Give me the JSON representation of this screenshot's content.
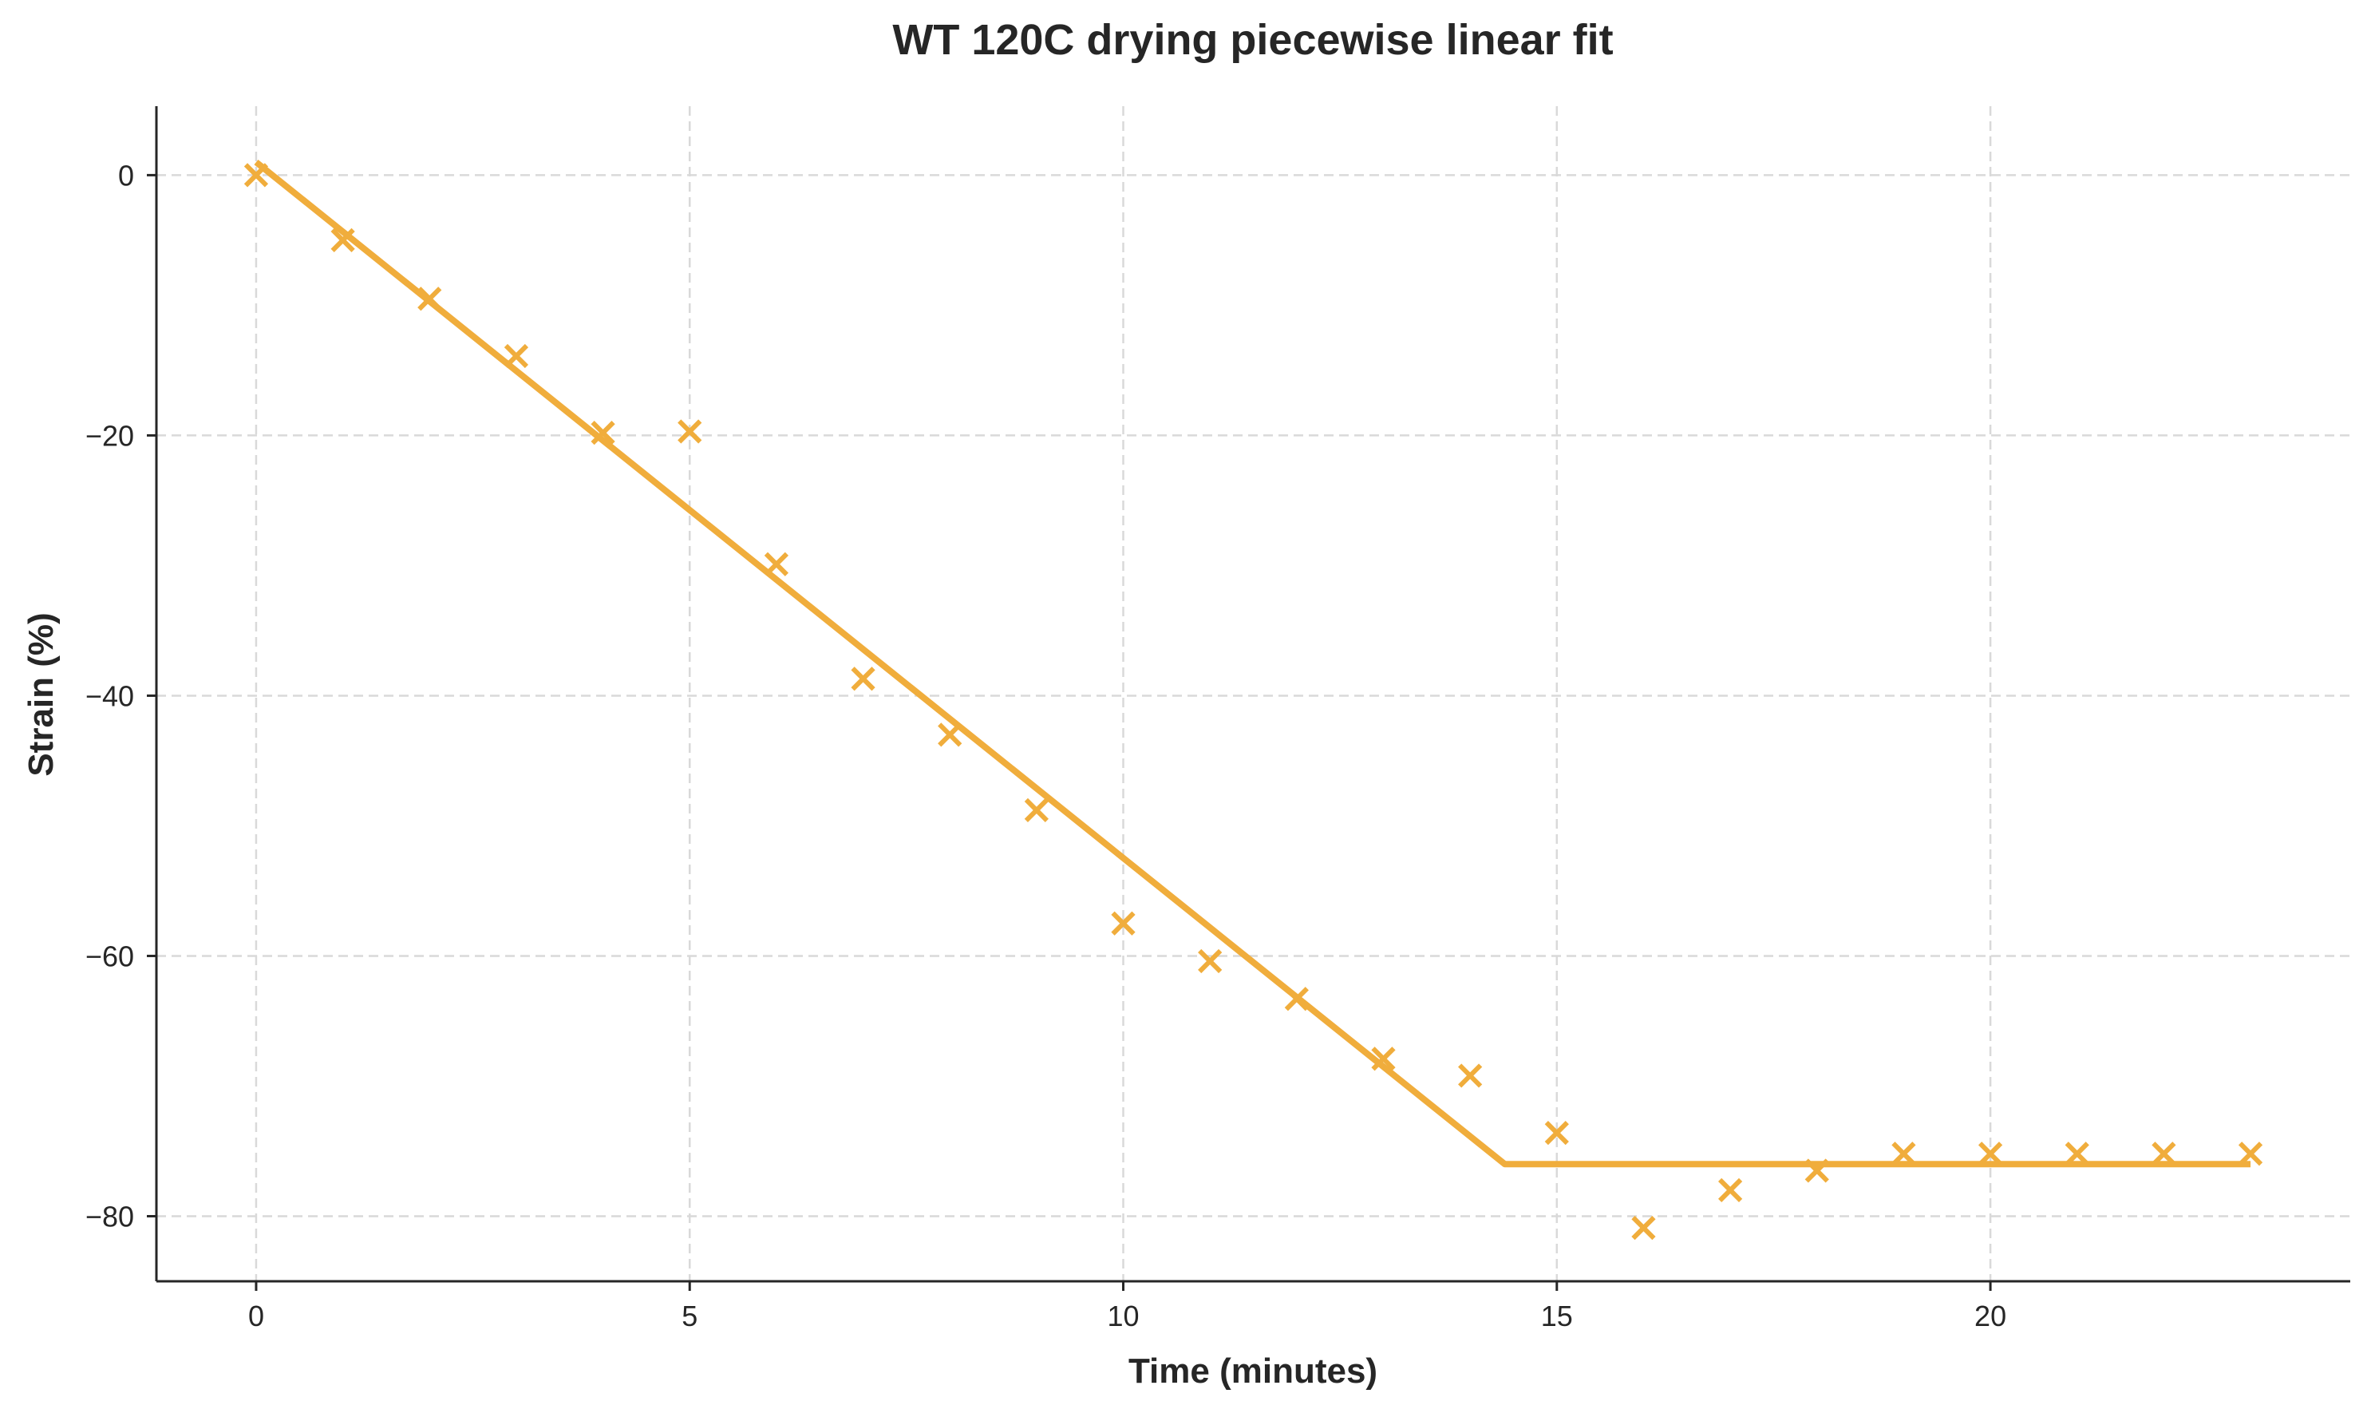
{
  "chart_data": {
    "type": "scatter",
    "title": "WT 120C drying piecewise linear fit",
    "xlabel": "Time (minutes)",
    "ylabel": "Strain (%)",
    "xlim": [
      -1.15,
      24.15
    ],
    "ylim": [
      -85,
      5.3
    ],
    "xticks": [
      0,
      5,
      10,
      15,
      20
    ],
    "yticks": [
      0,
      -20,
      -40,
      -60,
      -80
    ],
    "xtick_labels": [
      "0",
      "5",
      "10",
      "15",
      "20"
    ],
    "ytick_labels": [
      "0",
      "−20",
      "−40",
      "−60",
      "−80"
    ],
    "grid": true,
    "color": "#F0AD3C",
    "series": [
      {
        "type": "scatter",
        "marker": "x",
        "x": [
          0,
          1,
          2,
          3,
          4,
          5,
          6,
          7,
          8,
          9,
          10,
          11,
          12,
          13,
          14,
          15,
          16,
          17,
          18,
          19,
          20,
          21,
          22,
          23
        ],
        "y": [
          0.0,
          -5.0,
          -9.5,
          -13.9,
          -19.8,
          -19.7,
          -29.9,
          -38.7,
          -43.0,
          -48.8,
          -57.5,
          -60.4,
          -63.3,
          -67.9,
          -69.2,
          -73.6,
          -80.9,
          -78.0,
          -76.5,
          -75.2,
          -75.2,
          -75.2,
          -75.2,
          -75.2
        ]
      },
      {
        "type": "line",
        "x": [
          0,
          14.4,
          23
        ],
        "y": [
          1.0,
          -76.0,
          -76.0
        ]
      }
    ]
  }
}
